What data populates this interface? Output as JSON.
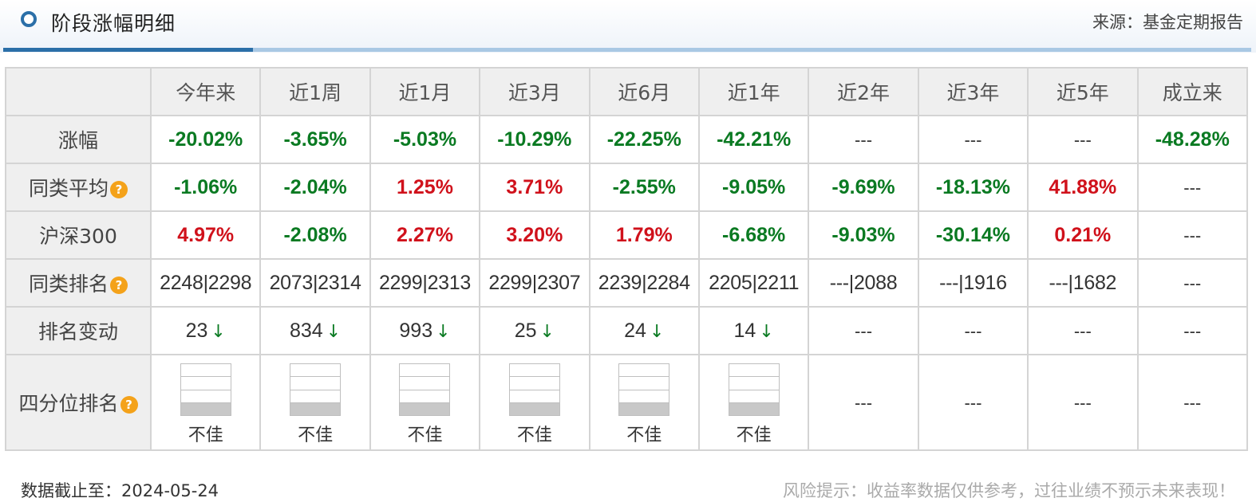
{
  "header": {
    "title": "阶段涨幅明细",
    "source": "来源：基金定期报告",
    "accent_color": "#2b6fa8"
  },
  "columns": [
    "今年来",
    "近1周",
    "近1月",
    "近3月",
    "近6月",
    "近1年",
    "近2年",
    "近3年",
    "近5年",
    "成立来"
  ],
  "rows": {
    "gain": {
      "label": "涨幅",
      "values": [
        "-20.02%",
        "-3.65%",
        "-5.03%",
        "-10.29%",
        "-22.25%",
        "-42.21%",
        "---",
        "---",
        "---",
        "-48.28%"
      ],
      "colors": [
        "green",
        "green",
        "green",
        "green",
        "green",
        "green",
        "none",
        "none",
        "none",
        "green"
      ]
    },
    "peer_avg": {
      "label": "同类平均",
      "help_icon": "question-mark-icon",
      "values": [
        "-1.06%",
        "-2.04%",
        "1.25%",
        "3.71%",
        "-2.55%",
        "-9.05%",
        "-9.69%",
        "-18.13%",
        "41.88%",
        "---"
      ],
      "colors": [
        "green",
        "green",
        "red",
        "red",
        "green",
        "green",
        "green",
        "green",
        "red",
        "none"
      ]
    },
    "hs300": {
      "label": "沪深300",
      "values": [
        "4.97%",
        "-2.08%",
        "2.27%",
        "3.20%",
        "1.79%",
        "-6.68%",
        "-9.03%",
        "-30.14%",
        "0.21%",
        "---"
      ],
      "colors": [
        "red",
        "green",
        "red",
        "red",
        "red",
        "green",
        "green",
        "green",
        "red",
        "none"
      ]
    },
    "peer_rank": {
      "label": "同类排名",
      "help_icon": "question-mark-icon",
      "values": [
        "2248|2298",
        "2073|2314",
        "2299|2313",
        "2299|2307",
        "2239|2284",
        "2205|2211",
        "---|2088",
        "---|1916",
        "---|1682",
        "---"
      ]
    },
    "rank_change": {
      "label": "排名变动",
      "values": [
        "23",
        "834",
        "993",
        "25",
        "24",
        "14",
        "---",
        "---",
        "---",
        "---"
      ],
      "arrows": [
        "↓",
        "↓",
        "↓",
        "↓",
        "↓",
        "↓",
        "",
        "",
        "",
        ""
      ]
    },
    "quartile": {
      "label": "四分位排名",
      "help_icon": "question-mark-icon",
      "values": [
        "不佳",
        "不佳",
        "不佳",
        "不佳",
        "不佳",
        "不佳",
        "---",
        "---",
        "---",
        "---"
      ],
      "quartile_level": [
        4,
        4,
        4,
        4,
        4,
        4,
        null,
        null,
        null,
        null
      ]
    }
  },
  "colors": {
    "green": "#0a7a22",
    "red": "#d0111b"
  },
  "footer": {
    "date": "数据截止至：2024-05-24",
    "risk": "风险提示：收益率数据仅供参考，过往业绩不预示未来表现！"
  }
}
